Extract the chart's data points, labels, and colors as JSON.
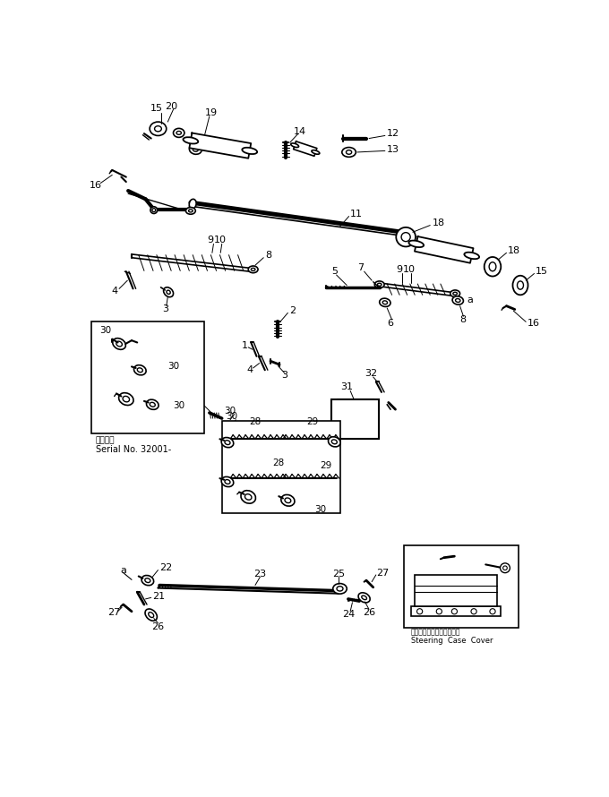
{
  "bg_color": "#ffffff",
  "line_color": "#000000",
  "fig_width": 6.8,
  "fig_height": 8.9,
  "dpi": 100,
  "serial_text_ja": "適用号数",
  "serial_text_en": "Serial No. 32001-",
  "steering_cover_ja": "ステアリングケースカバー",
  "steering_cover_en": "Steering  Case  Cover"
}
